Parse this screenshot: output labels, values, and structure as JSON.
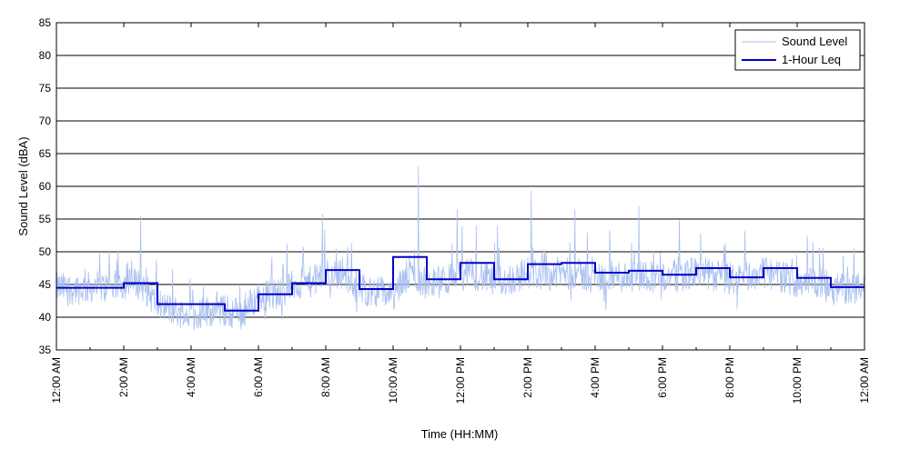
{
  "chart_data": {
    "type": "line",
    "title": "",
    "xlabel": "Time (HH:MM)",
    "ylabel": "Sound Level (dBA)",
    "ylim": [
      35,
      85
    ],
    "xlim_hours": [
      0,
      24
    ],
    "y_ticks": [
      "35",
      "40",
      "45",
      "50",
      "55",
      "60",
      "65",
      "70",
      "75",
      "80",
      "85"
    ],
    "x_ticks": [
      "12:00 AM",
      "2:00 AM",
      "4:00 AM",
      "6:00 AM",
      "8:00 AM",
      "10:00 AM",
      "12:00 PM",
      "2:00 PM",
      "4:00 PM",
      "6:00 PM",
      "8:00 PM",
      "10:00 PM",
      "12:00 AM"
    ],
    "grid": "horizontal",
    "legend_position": "top-right",
    "series": [
      {
        "name": "Sound Level",
        "color": "#a9bff0",
        "style": "thin line, dense 1-minute samples",
        "x_hours": [
          0,
          0.5,
          1,
          1.5,
          2,
          2.5,
          3,
          3.5,
          4,
          4.5,
          5,
          5.5,
          6,
          6.5,
          7,
          7.5,
          8,
          8.5,
          9,
          9.5,
          10,
          10.5,
          11,
          11.5,
          12,
          12.5,
          13,
          13.5,
          14,
          14.5,
          15,
          15.5,
          16,
          16.5,
          17,
          17.5,
          18,
          18.5,
          19,
          19.5,
          20,
          20.5,
          21,
          21.5,
          22,
          22.5,
          23,
          23.5,
          24
        ],
        "mean_values": [
          44.5,
          44.3,
          44.6,
          44.5,
          45.1,
          45.2,
          42,
          41,
          40.2,
          41,
          41,
          40.5,
          43.3,
          43.5,
          44.8,
          45.3,
          46.5,
          46.8,
          44.2,
          44.0,
          43.5,
          46.5,
          45.2,
          45.5,
          46.5,
          46.5,
          45.5,
          45.8,
          46.8,
          46.5,
          46.8,
          46.5,
          46.0,
          46.2,
          46.3,
          46.5,
          46.1,
          46.4,
          46.8,
          46.5,
          45.8,
          46.2,
          46.8,
          46.3,
          45.5,
          45.5,
          44.5,
          44.3,
          44.5
        ],
        "peaks": [
          {
            "x_hours": 2.5,
            "y": 55.5
          },
          {
            "x_hours": 7.9,
            "y": 55.8
          },
          {
            "x_hours": 10.75,
            "y": 63.0
          },
          {
            "x_hours": 11.9,
            "y": 56.5
          },
          {
            "x_hours": 13.1,
            "y": 54.0
          },
          {
            "x_hours": 14.1,
            "y": 59.3
          },
          {
            "x_hours": 15.4,
            "y": 56.5
          },
          {
            "x_hours": 17.3,
            "y": 57.0
          },
          {
            "x_hours": 22.3,
            "y": 52.5
          }
        ]
      },
      {
        "name": "1-Hour Leq",
        "color": "#0000c8",
        "style": "step",
        "hour_start": [
          0,
          1,
          2,
          3,
          4,
          5,
          6,
          7,
          8,
          9,
          10,
          11,
          12,
          13,
          14,
          15,
          16,
          17,
          18,
          19,
          20,
          21,
          22,
          23
        ],
        "values": [
          44.5,
          44.5,
          45.2,
          42.0,
          42.0,
          41.0,
          43.5,
          45.2,
          47.2,
          44.3,
          49.2,
          45.8,
          48.3,
          45.8,
          48.1,
          48.3,
          46.8,
          47.1,
          46.5,
          47.5,
          46.1,
          47.5,
          46.0,
          44.6
        ]
      }
    ]
  }
}
